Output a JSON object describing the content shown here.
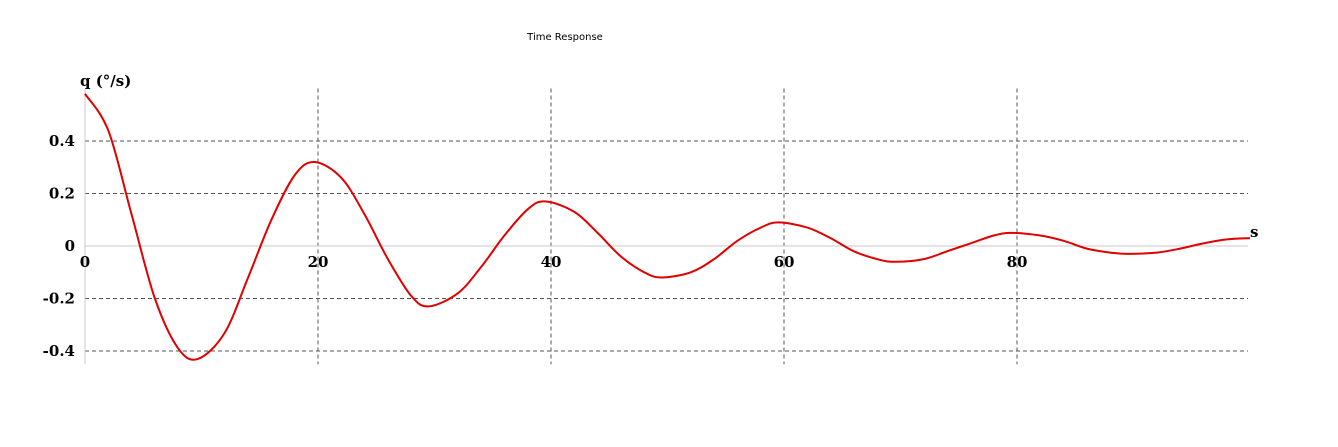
{
  "chart_data": {
    "type": "line",
    "title": "Time Response",
    "ylabel": "q (°/s)",
    "xlabel": "s",
    "xlim": [
      0,
      100
    ],
    "ylim": [
      -0.42,
      0.6
    ],
    "x_ticks": [
      0,
      20,
      40,
      60,
      80
    ],
    "x_tick_labels": [
      "0",
      "20",
      "40",
      "60",
      "80"
    ],
    "y_ticks": [
      0.4,
      0.2,
      0,
      -0.2,
      -0.4
    ],
    "y_tick_labels": [
      "0.4",
      "0.2",
      "0",
      "-0.2",
      "-0.4"
    ],
    "grid": true,
    "series": [
      {
        "color": "#e00000",
        "x": [
          0,
          2,
          4,
          6,
          8,
          9.7,
          12,
          14,
          16,
          18,
          19.7,
          22,
          24,
          26,
          28,
          29.5,
          32,
          34,
          36,
          38,
          39.5,
          42,
          44,
          46,
          48,
          49.5,
          52,
          54,
          56,
          58,
          59.5,
          62,
          64,
          66,
          68,
          69.5,
          72,
          74,
          76,
          78,
          79.5,
          82,
          84,
          86,
          88,
          89.5,
          92,
          94,
          96,
          98,
          100
        ],
        "y": [
          0.58,
          0.44,
          0.12,
          -0.2,
          -0.39,
          -0.43,
          -0.33,
          -0.12,
          0.1,
          0.27,
          0.32,
          0.26,
          0.12,
          -0.05,
          -0.19,
          -0.23,
          -0.18,
          -0.08,
          0.04,
          0.14,
          0.17,
          0.13,
          0.05,
          -0.04,
          -0.1,
          -0.12,
          -0.1,
          -0.05,
          0.02,
          0.07,
          0.09,
          0.07,
          0.03,
          -0.02,
          -0.05,
          -0.06,
          -0.05,
          -0.02,
          0.01,
          0.04,
          0.05,
          0.04,
          0.02,
          -0.01,
          -0.025,
          -0.03,
          -0.025,
          -0.01,
          0.01,
          0.025,
          0.03
        ]
      }
    ]
  }
}
